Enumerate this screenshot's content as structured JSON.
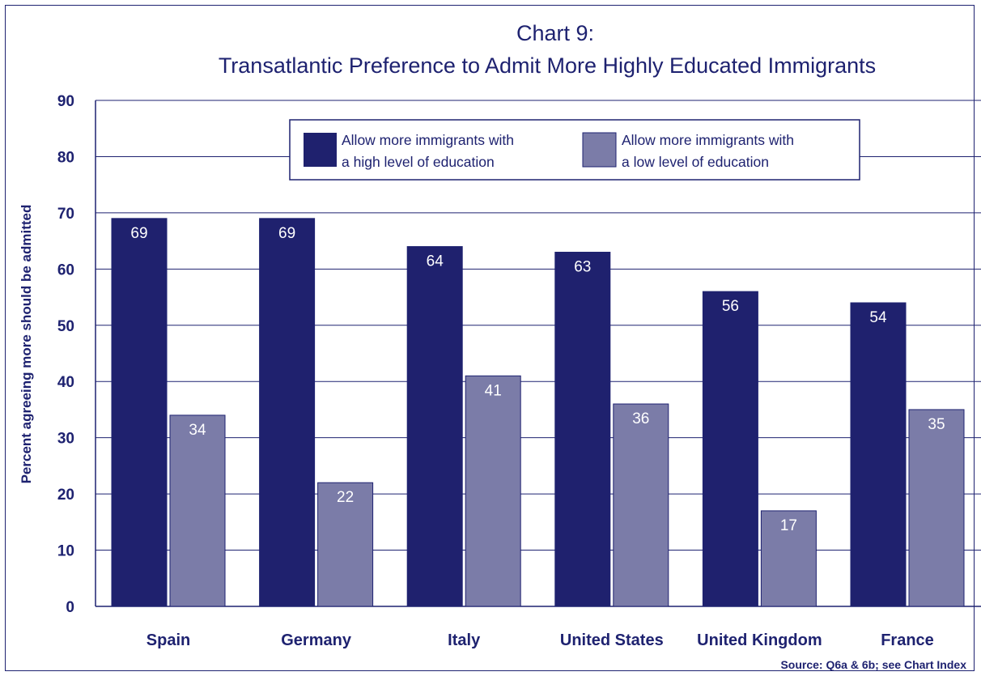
{
  "chart_data": {
    "type": "bar",
    "title": "Chart 9:",
    "subtitle": "Transatlantic Preference to Admit More Highly Educated Immigrants",
    "ylabel": "Percent agreeing more should be admitted",
    "xlabel": "",
    "ylim": [
      0,
      90
    ],
    "yticks": [
      0,
      10,
      20,
      30,
      40,
      50,
      60,
      70,
      80,
      90
    ],
    "grid": true,
    "legend_position": "top",
    "categories": [
      "Spain",
      "Germany",
      "Italy",
      "United States",
      "United Kingdom",
      "France"
    ],
    "series": [
      {
        "name_lines": [
          "Allow more immigrants with",
          "a high level of education"
        ],
        "color": "#1f216e",
        "values": [
          69,
          69,
          64,
          63,
          56,
          54
        ]
      },
      {
        "name_lines": [
          "Allow more immigrants with",
          "a low level of education"
        ],
        "color": "#7b7ca8",
        "values": [
          34,
          22,
          41,
          36,
          17,
          35
        ]
      }
    ],
    "source": "Source: Q6a & 6b; see Chart Index"
  }
}
